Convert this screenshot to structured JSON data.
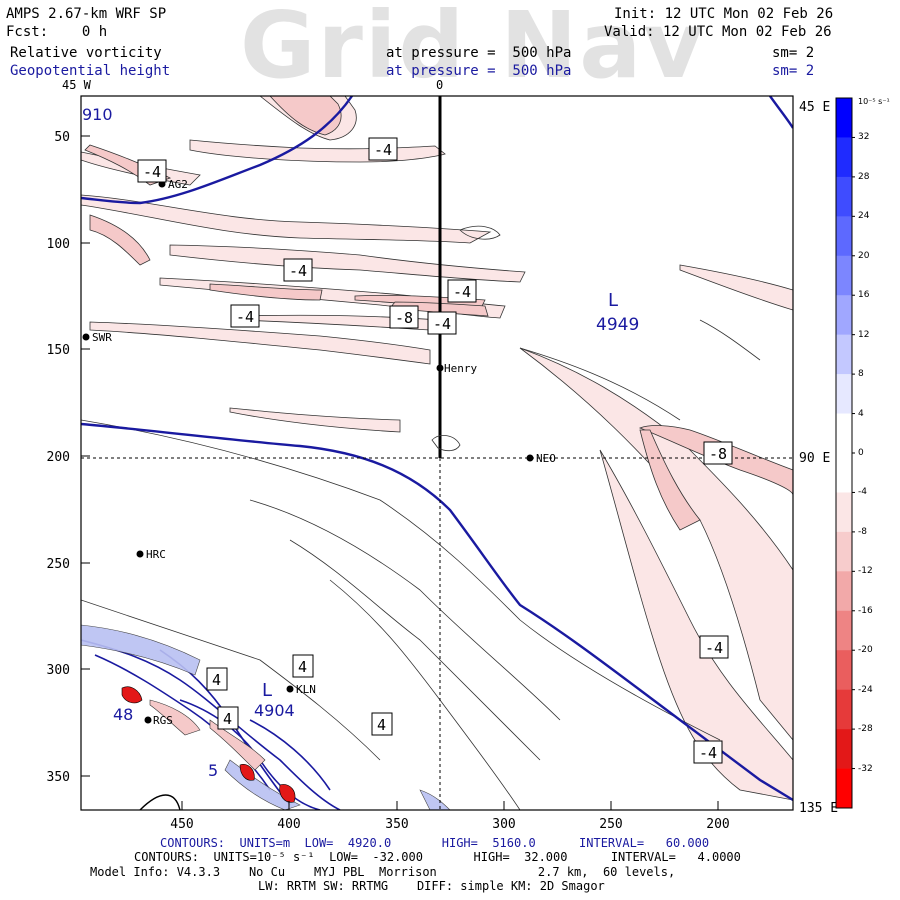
{
  "header": {
    "watermark": "Grid Nav",
    "model": "AMPS 2.67-km WRF SP",
    "fcst": "Fcst:    0 h",
    "init": "Init: 12 UTC Mon 02 Feb 26",
    "valid": "Valid: 12 UTC Mon 02 Feb 26",
    "field1": "Relative vorticity",
    "field1_pressure": "at pressure =  500 hPa",
    "field1_sm": "sm= 2",
    "field2": "Geopotential height",
    "field2_pressure": "at pressure =  500 hPa",
    "field2_sm": "sm= 2"
  },
  "map": {
    "top_labels": [
      "45 W",
      "0"
    ],
    "right_labels": [
      "45 E",
      "90 E",
      "135 E"
    ],
    "left_ticks": [
      "50",
      "100",
      "150",
      "200",
      "250",
      "300",
      "350"
    ],
    "bottom_ticks": [
      "450",
      "400",
      "350",
      "300",
      "250",
      "200"
    ],
    "stations": [
      "AG2",
      "SWR",
      "Henry",
      "NEO",
      "HRC",
      "KLN",
      "RGS"
    ],
    "contour_labels": [
      "-4",
      "-4",
      "-4",
      "-4",
      "-8",
      "-4",
      "-4",
      "-8",
      "-4",
      "-4",
      "4",
      "4",
      "4",
      "4"
    ],
    "height_labels": [
      "910",
      "L",
      "4949",
      "L",
      "4904",
      "48",
      "5"
    ],
    "colors": {
      "height": "#1a1aa0",
      "positive": "#0000ff",
      "negative": "#ff0000",
      "shade_light": "#fbe6e6",
      "shade_mid": "#f5c9c9"
    }
  },
  "colorbar": {
    "units": "10⁻⁵ s⁻¹",
    "labels": [
      "32",
      "28",
      "24",
      "20",
      "16",
      "12",
      "8",
      "4",
      "0",
      "-4",
      "-8",
      "-12",
      "-16",
      "-20",
      "-24",
      "-28",
      "-32"
    ],
    "colors": [
      "#0000ff",
      "#1f2bff",
      "#3f4cff",
      "#5d69ff",
      "#7c86ff",
      "#a0a7ff",
      "#c3c8ff",
      "#e6e8ff",
      "#ffffff",
      "#ffffff",
      "#fbe6e6",
      "#f7cccc",
      "#f2a9a9",
      "#ee8484",
      "#ea5e5e",
      "#e63a3a",
      "#e31818",
      "#ff0000"
    ]
  },
  "footer": {
    "line1": "CONTOURS:  UNITS=m  LOW=  4920.0       HIGH=  5160.0      INTERVAL=   60.000",
    "line2": "CONTOURS:  UNITS=10⁻⁵ s⁻¹  LOW=  -32.000       HIGH=  32.000      INTERVAL=   4.0000",
    "line3": "Model Info: V4.3.3    No Cu    MYJ PBL  Morrison              2.7 km,  60 levels,",
    "line4": "LW: RRTM SW: RRTMG    DIFF: simple KM: 2D Smagor"
  }
}
